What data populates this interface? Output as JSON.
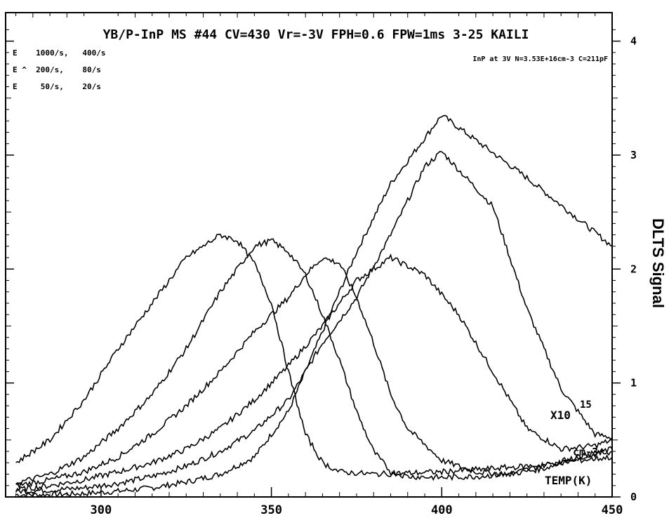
{
  "chart_data": {
    "type": "line",
    "title": "YB/P-InP MS #44  CV=430  Vr=-3V  FPH=0.6  FPW=1ms  3-25  KAILI",
    "subtitle": "InP at 3V N=3.53E+16cm-3 C=211pF",
    "legend_lines": [
      "E    1000/s,   400/s",
      "E ^  200/s,    80/s",
      "E     50/s,    20/s"
    ],
    "xlabel": "TEMP(K)",
    "ylabel": "DLTS Signal",
    "y_multiplier": "X10",
    "y_multiplier_exp": "15",
    "y_unit": "cm-3",
    "xlim": [
      272,
      450
    ],
    "ylim": [
      0,
      4.25
    ],
    "x_ticks": [
      300,
      350,
      400,
      450
    ],
    "y_ticks": [
      0,
      1,
      2,
      3,
      4
    ],
    "series": [
      {
        "x": [
          275,
          285,
          295,
          305,
          315,
          325,
          335,
          345,
          355,
          365,
          375,
          385,
          400,
          425,
          450
        ],
        "values": [
          0.02,
          0.02,
          0.03,
          0.05,
          0.08,
          0.13,
          0.2,
          0.35,
          0.75,
          1.45,
          2.15,
          2.75,
          3.35,
          2.8,
          2.2
        ]
      },
      {
        "x": [
          275,
          285,
          295,
          305,
          315,
          325,
          335,
          345,
          355,
          365,
          375,
          385,
          395,
          400,
          415,
          425,
          435,
          445,
          450
        ],
        "values": [
          0.05,
          0.06,
          0.08,
          0.12,
          0.18,
          0.27,
          0.4,
          0.58,
          0.85,
          1.35,
          1.75,
          2.3,
          2.9,
          3.03,
          2.55,
          1.65,
          0.95,
          0.55,
          0.52
        ]
      },
      {
        "x": [
          275,
          285,
          295,
          305,
          315,
          325,
          335,
          345,
          355,
          365,
          375,
          385,
          395,
          405,
          415,
          425,
          435,
          445,
          450
        ],
        "values": [
          0.06,
          0.1,
          0.15,
          0.22,
          0.3,
          0.42,
          0.6,
          0.85,
          1.15,
          1.5,
          1.9,
          2.1,
          1.95,
          1.6,
          1.1,
          0.6,
          0.42,
          0.45,
          0.5
        ]
      },
      {
        "x": [
          275,
          285,
          295,
          305,
          315,
          325,
          335,
          345,
          355,
          360,
          365,
          370,
          375,
          380,
          385,
          390,
          400,
          410,
          420,
          430,
          440,
          450
        ],
        "values": [
          0.1,
          0.15,
          0.22,
          0.35,
          0.55,
          0.8,
          1.1,
          1.45,
          1.75,
          1.95,
          2.1,
          2.05,
          1.75,
          1.35,
          0.9,
          0.6,
          0.32,
          0.22,
          0.2,
          0.25,
          0.35,
          0.42
        ]
      },
      {
        "x": [
          275,
          285,
          295,
          305,
          315,
          325,
          335,
          345,
          350,
          355,
          360,
          365,
          370,
          375,
          380,
          385,
          390,
          400,
          410,
          420,
          430,
          440,
          450
        ],
        "values": [
          0.12,
          0.2,
          0.35,
          0.6,
          0.9,
          1.3,
          1.8,
          2.2,
          2.25,
          2.15,
          1.95,
          1.6,
          1.2,
          0.75,
          0.4,
          0.22,
          0.18,
          0.17,
          0.18,
          0.2,
          0.28,
          0.35,
          0.4
        ]
      },
      {
        "x": [
          275,
          285,
          295,
          305,
          315,
          325,
          335,
          340,
          345,
          350,
          355,
          360,
          365,
          370,
          380,
          390,
          400,
          410,
          420,
          430,
          440,
          450
        ],
        "values": [
          0.3,
          0.5,
          0.85,
          1.3,
          1.7,
          2.1,
          2.3,
          2.25,
          2.05,
          1.7,
          1.1,
          0.55,
          0.3,
          0.22,
          0.2,
          0.21,
          0.22,
          0.24,
          0.26,
          0.28,
          0.32,
          0.35
        ]
      }
    ]
  }
}
